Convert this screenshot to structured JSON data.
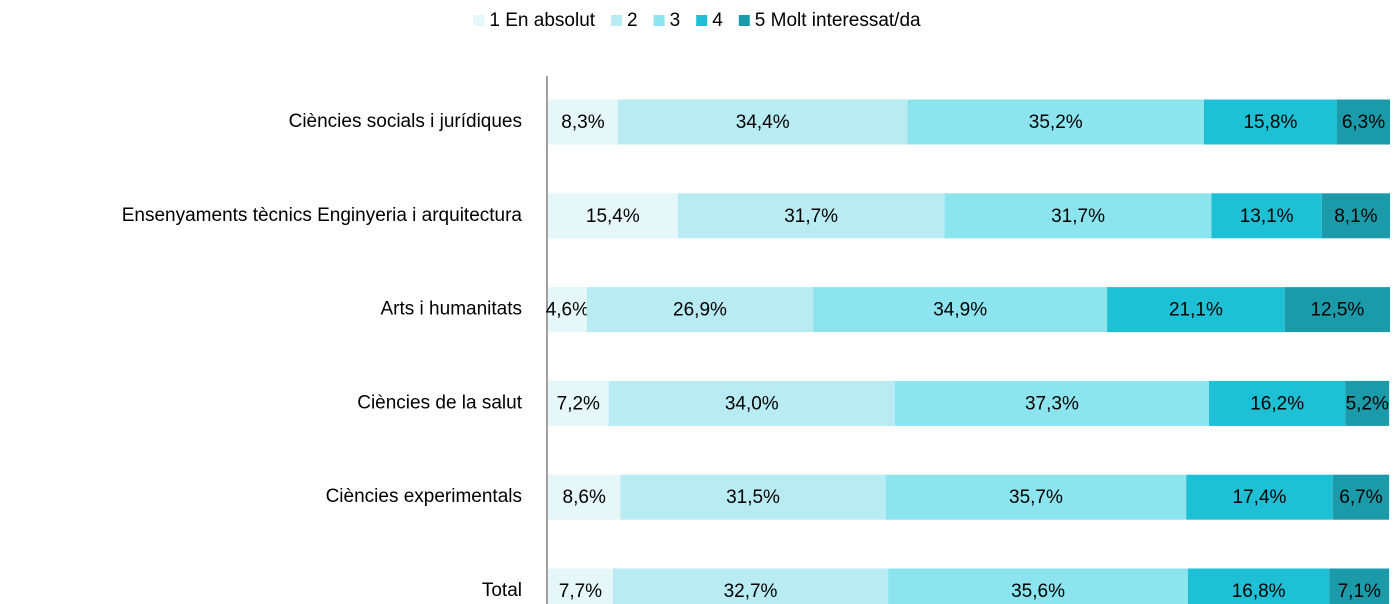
{
  "chart_data": {
    "type": "stacked-barh",
    "categories": [
      "Ciències socials i jurídiques",
      "Ensenyaments tècnics Enginyeria i arquitectura",
      "Arts i humanitats",
      "Ciències de la salut",
      "Ciències experimentals",
      "Total"
    ],
    "xlim": [
      0,
      100
    ],
    "legend": "top",
    "series": [
      {
        "name": "1 En absolut",
        "color": "#e6f7fa",
        "values": [
          8.3,
          15.4,
          4.6,
          7.2,
          8.6,
          7.7
        ],
        "value_labels": [
          "8,3%",
          "15,4%",
          "4,6%",
          "7,2%",
          "8,6%",
          "7,7%"
        ]
      },
      {
        "name": "2",
        "color": "#b9ebf3",
        "values": [
          34.4,
          31.7,
          26.9,
          34.0,
          31.5,
          32.7
        ],
        "value_labels": [
          "34,4%",
          "31,7%",
          "26,9%",
          "34,0%",
          "31,5%",
          "32,7%"
        ]
      },
      {
        "name": "3",
        "color": "#8ce4ee",
        "values": [
          35.2,
          31.7,
          34.9,
          37.3,
          35.7,
          35.6
        ],
        "value_labels": [
          "35,2%",
          "31,7%",
          "34,9%",
          "37,3%",
          "35,7%",
          "35,6%"
        ]
      },
      {
        "name": "4",
        "color": "#1dc0d4",
        "values": [
          15.8,
          13.1,
          21.1,
          16.2,
          17.4,
          16.8
        ],
        "value_labels": [
          "15,8%",
          "13,1%",
          "21,1%",
          "16,2%",
          "17,4%",
          "16,8%"
        ]
      },
      {
        "name": "5 Molt interessat/da",
        "color": "#1b9ba9",
        "values": [
          6.3,
          8.1,
          12.5,
          5.2,
          6.7,
          7.1
        ],
        "value_labels": [
          "6,3%",
          "8,1%",
          "12,5%",
          "5,2%",
          "6,7%",
          "7,1%"
        ]
      }
    ]
  }
}
